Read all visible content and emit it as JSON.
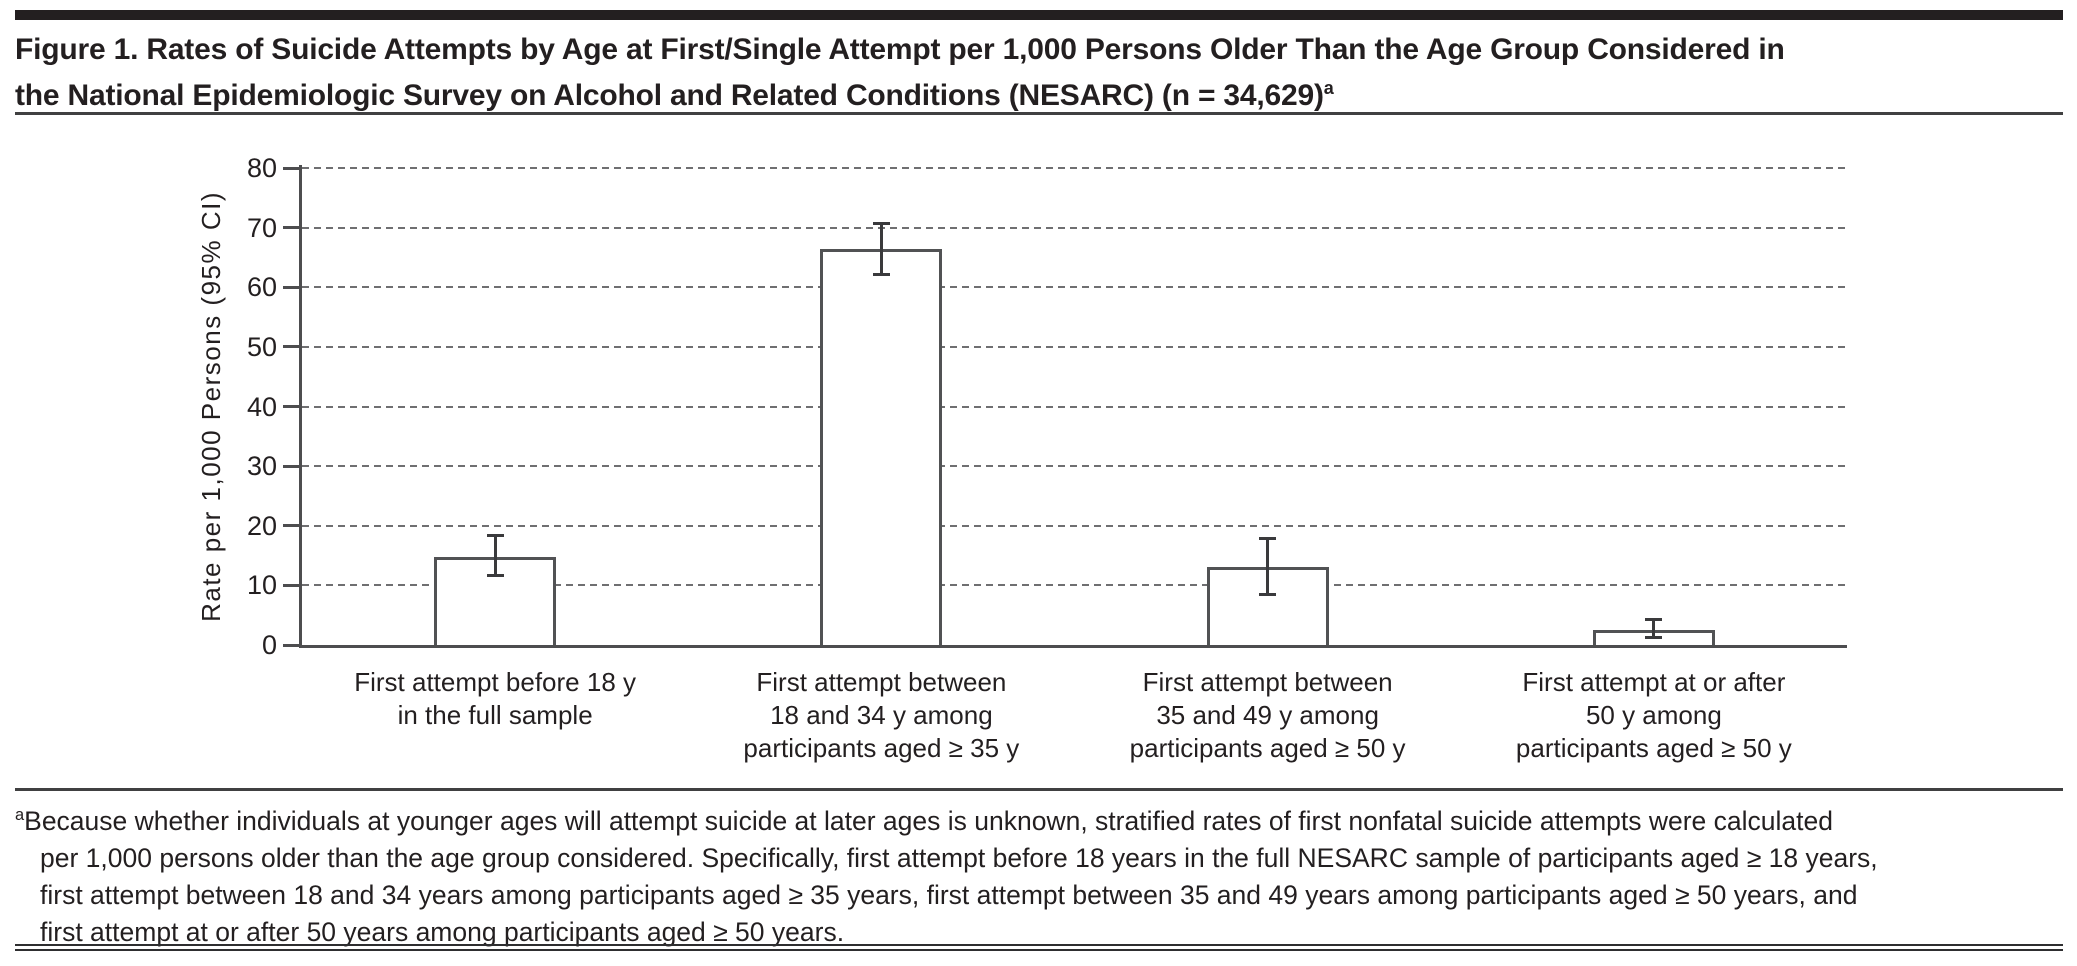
{
  "figure": {
    "title_line1": "Figure 1. Rates of Suicide Attempts by Age at First/Single Attempt per 1,000 Persons Older Than the Age Group Considered in",
    "title_line2": "the National Epidemiologic Survey on Alcohol and Related Conditions (NESARC) (n = 34,629)",
    "title_superscript": "a"
  },
  "chart_data": {
    "type": "bar",
    "title": "",
    "xlabel": "",
    "ylabel": "Rate per 1,000 Persons (95% CI)",
    "ylim": [
      0,
      80
    ],
    "yticks": [
      0,
      10,
      20,
      30,
      40,
      50,
      60,
      70,
      80
    ],
    "grid": "dashed horizontal gridlines at every y tick",
    "legend_position": "none",
    "bar_fill": "#ffffff",
    "bar_border": "#515254",
    "error_bar_color": "#3a3a3c",
    "categories": [
      [
        "First attempt before 18 y",
        "in the full sample"
      ],
      [
        "First attempt between",
        "18 and 34 y among",
        "participants aged ≥ 35 y"
      ],
      [
        "First attempt between",
        "35 and 49 y among",
        "participants aged ≥ 50 y"
      ],
      [
        "First attempt at or after",
        "50 y among",
        "participants aged ≥ 50 y"
      ]
    ],
    "series": [
      {
        "name": "Rate per 1,000 persons (95% CI)",
        "values": [
          14.8,
          66.4,
          13.1,
          2.6
        ],
        "ci_low": [
          11.6,
          62.1,
          8.4,
          1.3
        ],
        "ci_high": [
          18.4,
          70.7,
          17.9,
          4.2
        ]
      }
    ]
  },
  "footnote": {
    "superscript": "a",
    "lines": [
      "Because whether individuals at younger ages will attempt suicide at later ages is unknown, stratified rates of first nonfatal suicide attempts were calculated",
      "per 1,000 persons older than the age group considered. Specifically, first attempt before 18 years in the full NESARC sample of participants aged ≥ 18 years,",
      "first attempt between 18 and 34 years among participants aged ≥ 35 years, first attempt between 35 and 49 years among participants aged ≥ 50 years, and",
      "first attempt at or after 50 years among participants aged ≥ 50 years."
    ]
  }
}
